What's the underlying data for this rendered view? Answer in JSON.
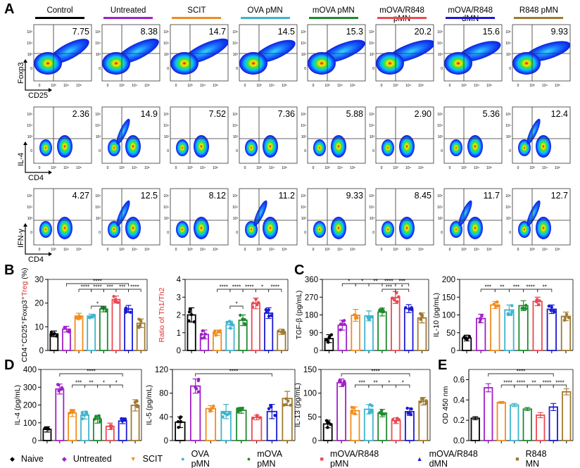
{
  "panels": {
    "a": "A",
    "b": "B",
    "c": "C",
    "d": "D",
    "e": "E"
  },
  "groups": [
    {
      "name": "Control",
      "legend": "Naive",
      "color": "#000000",
      "marker": "◆"
    },
    {
      "name": "Untreated",
      "legend": "Untreated",
      "color": "#a020c8",
      "marker": "◆"
    },
    {
      "name": "SCIT",
      "legend": "SCIT",
      "color": "#f08c1e",
      "marker": "▼"
    },
    {
      "name": "OVA pMN",
      "legend": "OVA pMN",
      "color": "#3fb4cc",
      "marker": "●"
    },
    {
      "name": "mOVA pMN",
      "legend": "mOVA pMN",
      "color": "#1e8a2e",
      "marker": "●"
    },
    {
      "name": "mOVA/R848 pMN",
      "legend": "mOVA/R848 pMN",
      "color": "#ea4a52",
      "marker": "■"
    },
    {
      "name": "mOVA/R848 dMN",
      "legend": "mOVA/R848 dMN",
      "color": "#1a1ad2",
      "marker": "▲"
    },
    {
      "name": "R848 pMN",
      "legend": "R848 MN",
      "color": "#a07a32",
      "marker": "■"
    }
  ],
  "flow": {
    "x_ticks": [
      "0",
      "10³",
      "10⁴",
      "10⁵"
    ],
    "y_ticks": [
      "10⁵",
      "10⁴",
      "10³",
      "0"
    ],
    "rows": [
      {
        "ylabel": "Foxp3",
        "xlabel": "CD25",
        "values": [
          "7.75",
          "8.38",
          "14.7",
          "14.5",
          "15.3",
          "20.2",
          "15.6",
          "9.93"
        ]
      },
      {
        "ylabel": "IL-4",
        "xlabel": "CD4",
        "values": [
          "2.36",
          "14.9",
          "7.52",
          "7.36",
          "5.88",
          "2.90",
          "5.36",
          "12.4"
        ]
      },
      {
        "ylabel": "IFN-γ",
        "xlabel": "CD4",
        "values": [
          "4.27",
          "12.5",
          "8.12",
          "11.2",
          "9.33",
          "8.45",
          "11.7",
          "12.7"
        ]
      }
    ]
  },
  "chart_data": [
    {
      "id": "b1",
      "type": "bar",
      "ylabel": "CD4⁺CD25⁺Foxp3⁺Treg (%)",
      "ylabel_color": "#000000",
      "ylim": [
        0,
        30
      ],
      "yticks": [
        0,
        10,
        20,
        30
      ],
      "values": [
        7,
        9,
        14.5,
        14.5,
        17.5,
        21.5,
        17.5,
        11.5
      ],
      "sd": [
        1.2,
        1.2,
        1.2,
        0.8,
        1.2,
        1.5,
        1.5,
        1.8
      ],
      "brackets": [
        {
          "from": 1,
          "to": 6,
          "label": "****",
          "level": 0
        },
        {
          "from": 2,
          "to": 3,
          "label": "****",
          "level": 1
        },
        {
          "from": 3,
          "to": 4,
          "label": "****",
          "level": 1
        },
        {
          "from": 4,
          "to": 5,
          "label": "***",
          "level": 1
        },
        {
          "from": 5,
          "to": 6,
          "label": "***",
          "level": 1
        },
        {
          "from": 6,
          "to": 7,
          "label": "****",
          "level": 1
        },
        {
          "from": 3,
          "to": 4,
          "label": "*",
          "level": 4
        }
      ]
    },
    {
      "id": "b2",
      "type": "bar",
      "ylabel": "Ratio of Th1/Th2",
      "ylabel_color": "#e23030",
      "ylim": [
        0,
        4
      ],
      "yticks": [
        0,
        1,
        2,
        3,
        4
      ],
      "values": [
        2.0,
        0.9,
        1.0,
        1.45,
        1.7,
        2.65,
        2.1,
        1.05
      ],
      "sd": [
        0.4,
        0.25,
        0.15,
        0.2,
        0.3,
        0.3,
        0.3,
        0.15
      ],
      "brackets": [
        {
          "from": 2,
          "to": 3,
          "label": "****",
          "level": 1
        },
        {
          "from": 3,
          "to": 4,
          "label": "****",
          "level": 1
        },
        {
          "from": 4,
          "to": 5,
          "label": "****",
          "level": 1
        },
        {
          "from": 5,
          "to": 6,
          "label": "*",
          "level": 1
        },
        {
          "from": 6,
          "to": 7,
          "label": "****",
          "level": 1
        },
        {
          "from": 3,
          "to": 4,
          "label": "*",
          "level": 4
        }
      ]
    },
    {
      "id": "c1",
      "type": "bar",
      "ylabel": "TGF-β (pg/mL)",
      "ylabel_color": "#000000",
      "ylim": [
        0,
        360
      ],
      "yticks": [
        0,
        90,
        180,
        270,
        360
      ],
      "values": [
        60,
        128,
        178,
        175,
        195,
        268,
        212,
        165
      ],
      "sd": [
        20,
        25,
        30,
        25,
        20,
        30,
        20,
        25
      ],
      "brackets": [
        {
          "from": 1,
          "to": 2,
          "label": "*",
          "level": 0
        },
        {
          "from": 2,
          "to": 3,
          "label": "*",
          "level": 0
        },
        {
          "from": 3,
          "to": 4,
          "label": "**",
          "level": 0
        },
        {
          "from": 4,
          "to": 5,
          "label": "****",
          "level": 0
        },
        {
          "from": 5,
          "to": 6,
          "label": "***",
          "level": 0
        },
        {
          "from": 4,
          "to": 5,
          "label": "***",
          "level": 1
        },
        {
          "from": 5,
          "to": 6,
          "label": "*",
          "level": 1
        }
      ]
    },
    {
      "id": "c2",
      "type": "bar",
      "ylabel": "IL-10 (pg/mL)",
      "ylabel_color": "#000000",
      "ylim": [
        0,
        200
      ],
      "yticks": [
        0,
        50,
        100,
        150,
        200
      ],
      "values": [
        35,
        90,
        128,
        114,
        126,
        138,
        116,
        96
      ],
      "sd": [
        8,
        12,
        10,
        14,
        14,
        12,
        12,
        12
      ],
      "brackets": [
        {
          "from": 1,
          "to": 2,
          "label": "***",
          "level": 1
        },
        {
          "from": 2,
          "to": 3,
          "label": "**",
          "level": 1
        },
        {
          "from": 3,
          "to": 4,
          "label": "***",
          "level": 1
        },
        {
          "from": 4,
          "to": 5,
          "label": "****",
          "level": 1
        },
        {
          "from": 5,
          "to": 6,
          "label": "**",
          "level": 1
        }
      ]
    },
    {
      "id": "d1",
      "type": "bar",
      "ylabel": "IL-4 (pg/mL)",
      "ylabel_color": "#000000",
      "ylim": [
        0,
        400
      ],
      "yticks": [
        0,
        100,
        200,
        300,
        400
      ],
      "values": [
        63,
        290,
        155,
        143,
        120,
        80,
        110,
        198
      ],
      "sd": [
        15,
        28,
        20,
        22,
        22,
        18,
        15,
        32
      ],
      "brackets": [
        {
          "from": 1,
          "to": 6,
          "label": "****",
          "level": 0
        },
        {
          "from": 2,
          "to": 3,
          "label": "***",
          "level": 2
        },
        {
          "from": 3,
          "to": 4,
          "label": "**",
          "level": 2
        },
        {
          "from": 4,
          "to": 5,
          "label": "*",
          "level": 2
        },
        {
          "from": 5,
          "to": 6,
          "label": "*",
          "level": 2
        }
      ]
    },
    {
      "id": "d2",
      "type": "bar",
      "ylabel": "IL-5 (pg/mL)",
      "ylabel_color": "#000000",
      "ylim": [
        0,
        120
      ],
      "yticks": [
        0,
        40,
        80,
        120
      ],
      "values": [
        31,
        92,
        54,
        49,
        51,
        39,
        49,
        71
      ],
      "sd": [
        9,
        12,
        5,
        12,
        5,
        4,
        12,
        12
      ],
      "brackets": [
        {
          "from": 1,
          "to": 6,
          "label": "****",
          "level": 0
        }
      ]
    },
    {
      "id": "d3",
      "type": "bar",
      "ylabel": "IL-13 (pg/mL)",
      "ylabel_color": "#000000",
      "ylim": [
        0,
        150
      ],
      "yticks": [
        0,
        50,
        100,
        150
      ],
      "values": [
        35,
        122,
        63,
        66,
        58,
        42,
        61,
        83
      ],
      "sd": [
        8,
        8,
        8,
        10,
        8,
        6,
        8,
        8
      ],
      "brackets": [
        {
          "from": 1,
          "to": 6,
          "label": "****",
          "level": 0
        },
        {
          "from": 2,
          "to": 3,
          "label": "***",
          "level": 2
        },
        {
          "from": 3,
          "to": 4,
          "label": "**",
          "level": 2
        },
        {
          "from": 4,
          "to": 5,
          "label": "*",
          "level": 2
        },
        {
          "from": 5,
          "to": 6,
          "label": "*",
          "level": 2
        }
      ]
    },
    {
      "id": "e",
      "type": "bar",
      "ylabel": "OD 450 nm",
      "ylabel_color": "#000000",
      "ylim": [
        0,
        0.7
      ],
      "yticks": [
        0.0,
        0.2,
        0.4,
        0.6
      ],
      "values": [
        0.22,
        0.52,
        0.375,
        0.35,
        0.31,
        0.25,
        0.33,
        0.48
      ],
      "sd": [
        0.015,
        0.04,
        0.01,
        0.015,
        0.015,
        0.025,
        0.035,
        0.03
      ],
      "points": false,
      "brackets": [
        {
          "from": 1,
          "to": 6,
          "label": "****",
          "level": 0
        },
        {
          "from": 2,
          "to": 3,
          "label": "****",
          "level": 2
        },
        {
          "from": 3,
          "to": 4,
          "label": "****",
          "level": 2
        },
        {
          "from": 4,
          "to": 5,
          "label": "**",
          "level": 2
        },
        {
          "from": 5,
          "to": 6,
          "label": "****",
          "level": 2
        },
        {
          "from": 6,
          "to": 7,
          "label": "****",
          "level": 2
        }
      ]
    }
  ]
}
